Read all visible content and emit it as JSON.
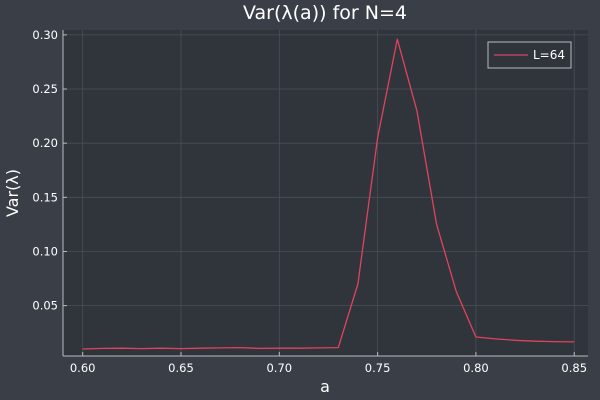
{
  "chart_data": {
    "type": "line",
    "title": "Var(λ(a)) for N=4",
    "xlabel": "a",
    "ylabel": "Var(λ)",
    "xlim": [
      0.59,
      0.857
    ],
    "ylim": [
      0.0035,
      0.3045
    ],
    "xticks": [
      0.6,
      0.65,
      0.7,
      0.75,
      0.8,
      0.85
    ],
    "xtick_labels": [
      "0.60",
      "0.65",
      "0.70",
      "0.75",
      "0.80",
      "0.85"
    ],
    "yticks": [
      0.05,
      0.1,
      0.15,
      0.2,
      0.25,
      0.3
    ],
    "ytick_labels": [
      "0.05",
      "0.10",
      "0.15",
      "0.20",
      "0.25",
      "0.30"
    ],
    "grid": true,
    "legend_position": "top-right",
    "series": [
      {
        "name": "L=64",
        "color": "#e0435f",
        "x": [
          0.6,
          0.61,
          0.62,
          0.63,
          0.64,
          0.65,
          0.66,
          0.67,
          0.68,
          0.69,
          0.7,
          0.71,
          0.72,
          0.73,
          0.74,
          0.75,
          0.76,
          0.77,
          0.78,
          0.79,
          0.8,
          0.81,
          0.82,
          0.83,
          0.84,
          0.85
        ],
        "y": [
          0.01,
          0.0105,
          0.0107,
          0.0103,
          0.0107,
          0.0103,
          0.0107,
          0.011,
          0.0113,
          0.0105,
          0.0107,
          0.0107,
          0.011,
          0.0113,
          0.07,
          0.205,
          0.296,
          0.23,
          0.125,
          0.063,
          0.021,
          0.0193,
          0.018,
          0.0172,
          0.0168,
          0.0165
        ]
      }
    ]
  }
}
